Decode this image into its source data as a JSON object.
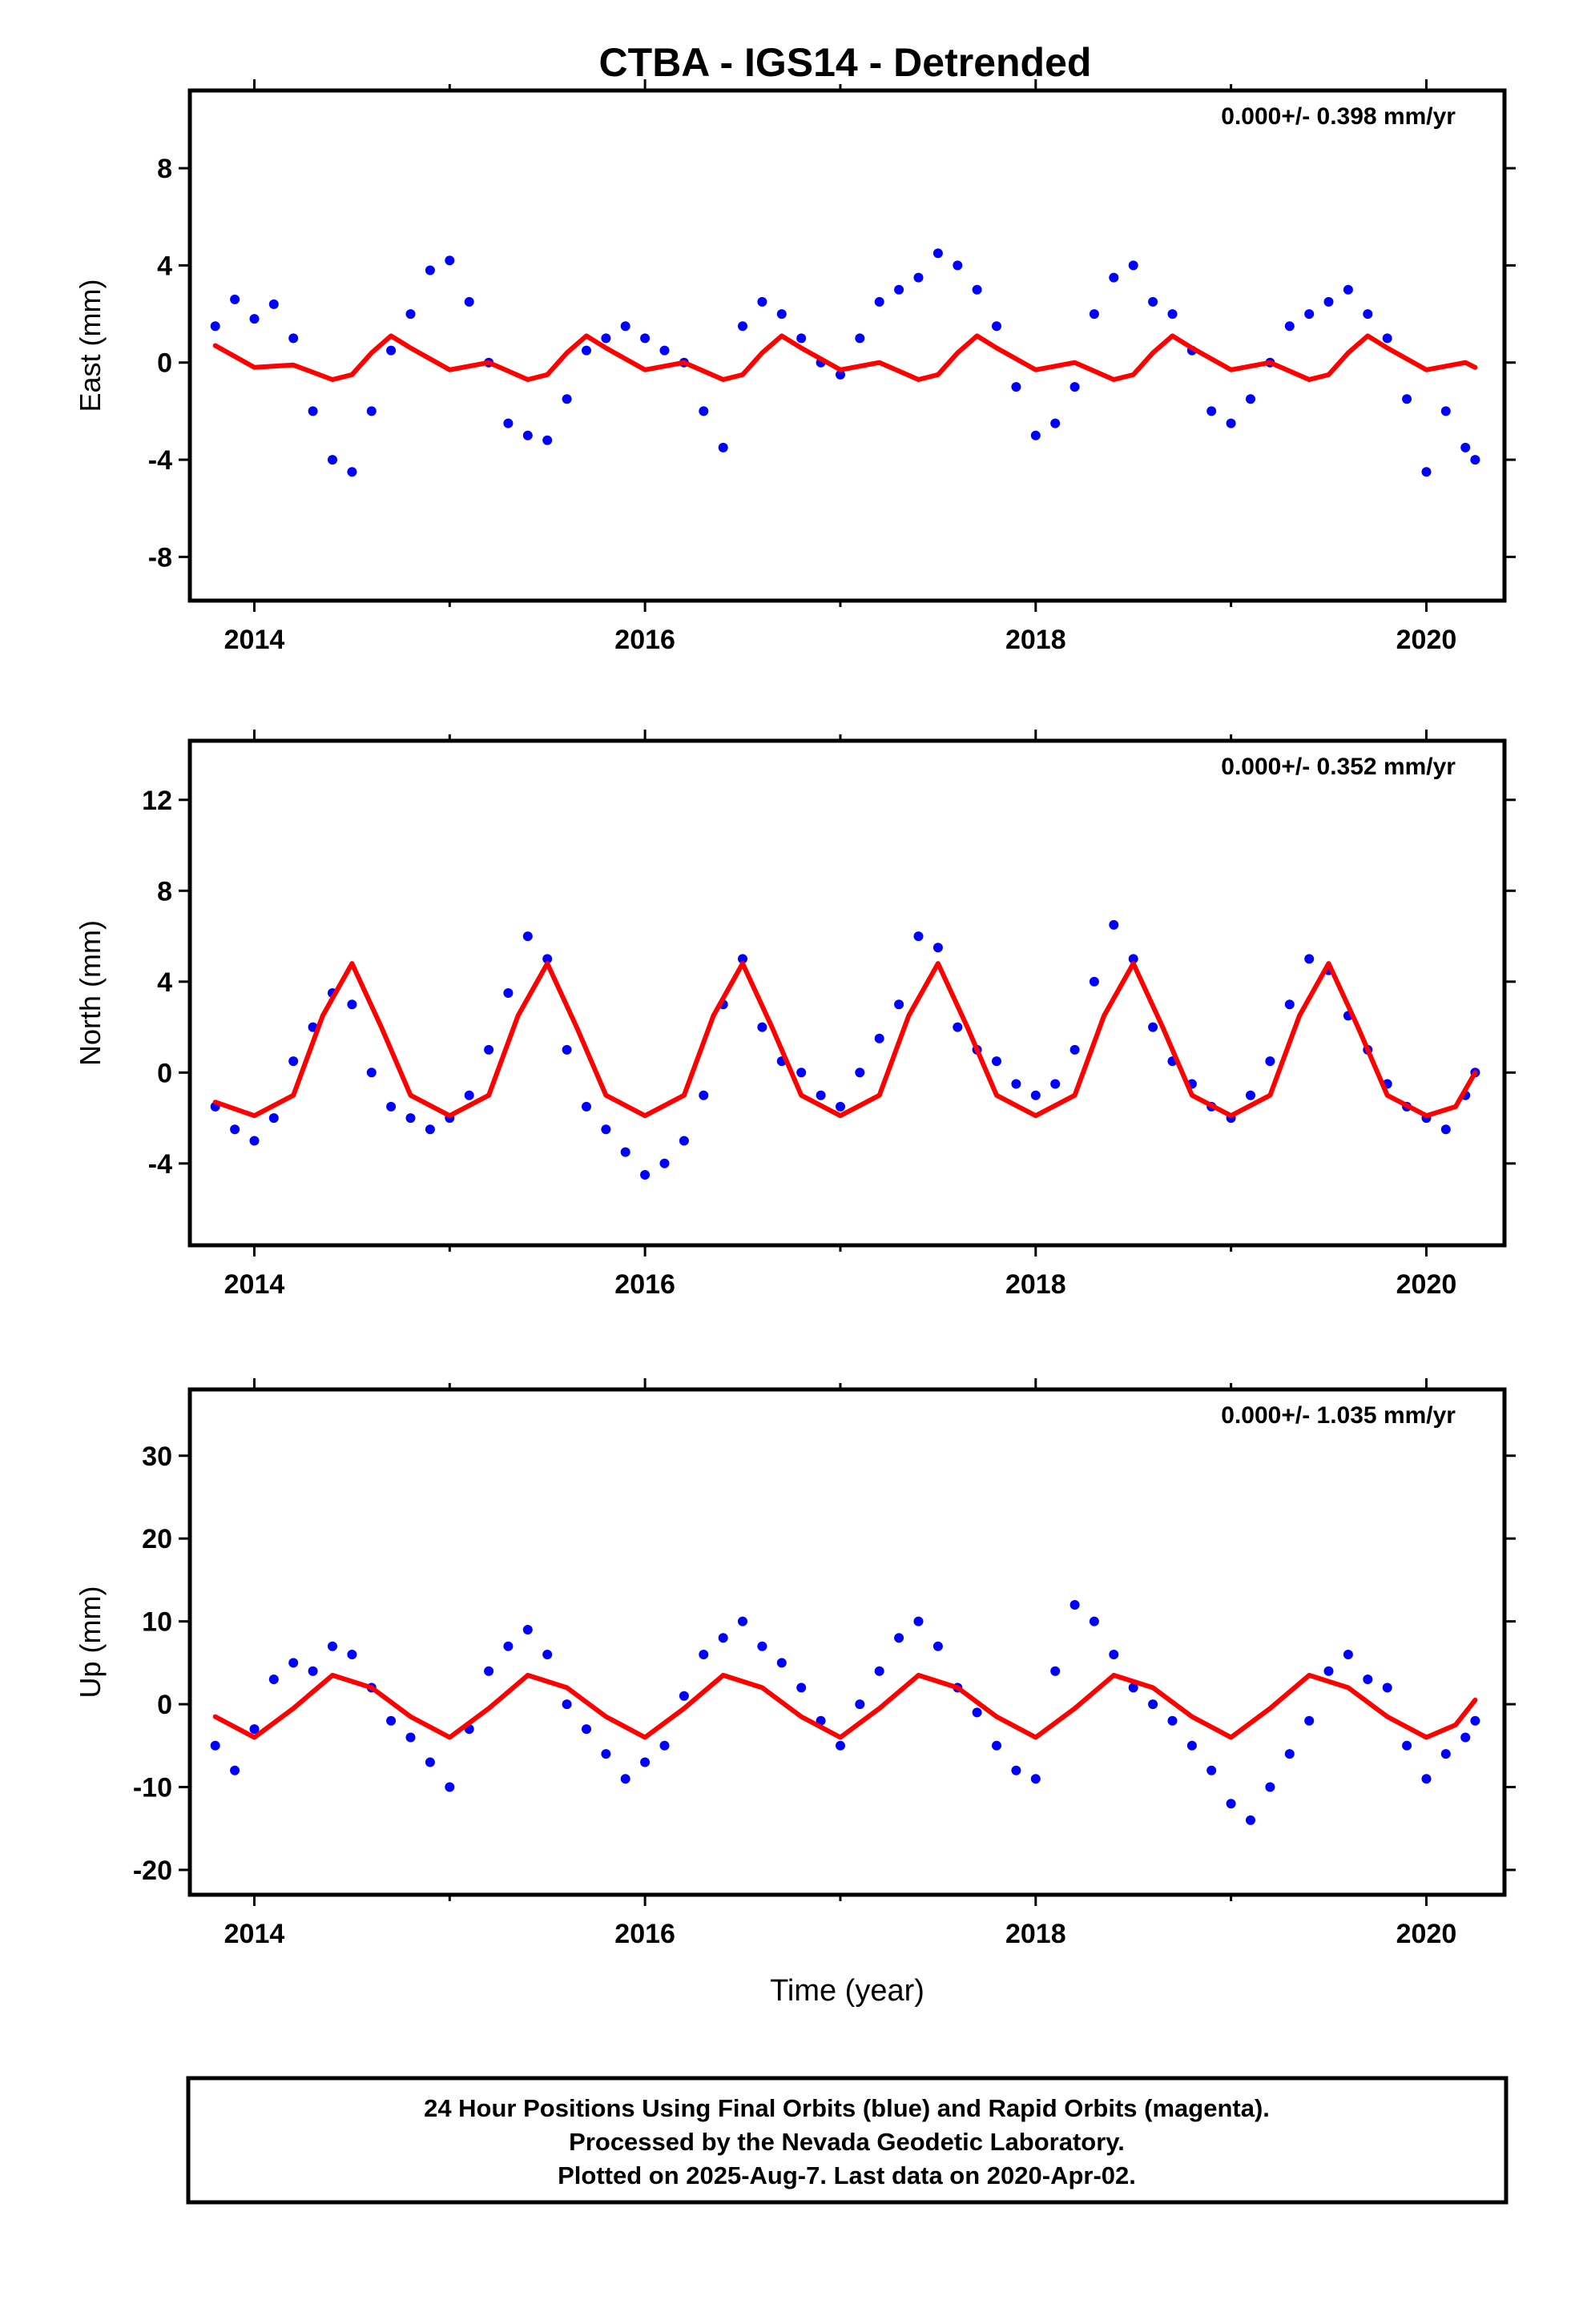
{
  "title": "CTBA - IGS14 - Detrended",
  "footer": {
    "lines": [
      "24 Hour Positions Using Final Orbits (blue) and Rapid Orbits (magenta).",
      "Processed by the Nevada Geodetic Laboratory.",
      "Plotted on 2025-Aug-7. Last data on 2020-Apr-02."
    ]
  },
  "colors": {
    "final_orbit_points": "#0000ff",
    "model_curve": "#ff0000",
    "frame": "#000000"
  },
  "chart_data": [
    {
      "type": "scatter",
      "component": "East",
      "ylabel": "East (mm)",
      "xlabel": "",
      "rate_label": "0.000+/- 0.398 mm/yr",
      "xlim": [
        2013.67,
        2020.4
      ],
      "ylim": [
        -9.8,
        11.2
      ],
      "xticks": [
        2014,
        2016,
        2018,
        2020
      ],
      "yticks": [
        -8,
        -4,
        0,
        4,
        8
      ],
      "series": [
        {
          "kind": "points",
          "x": [
            2013.8,
            2013.9,
            2014.0,
            2014.1,
            2014.2,
            2014.3,
            2014.4,
            2014.5,
            2014.6,
            2014.7,
            2014.8,
            2014.9,
            2015.0,
            2015.1,
            2015.2,
            2015.3,
            2015.4,
            2015.5,
            2015.6,
            2015.7,
            2015.8,
            2015.9,
            2016.0,
            2016.1,
            2016.2,
            2016.3,
            2016.4,
            2016.5,
            2016.6,
            2016.7,
            2016.8,
            2016.9,
            2017.0,
            2017.1,
            2017.2,
            2017.3,
            2017.4,
            2017.5,
            2017.6,
            2017.7,
            2017.8,
            2017.9,
            2018.0,
            2018.1,
            2018.2,
            2018.3,
            2018.4,
            2018.5,
            2018.6,
            2018.7,
            2018.8,
            2018.9,
            2019.0,
            2019.1,
            2019.2,
            2019.3,
            2019.4,
            2019.5,
            2019.6,
            2019.7,
            2019.8,
            2019.9,
            2020.0,
            2020.1,
            2020.2,
            2020.25
          ],
          "y": [
            1.5,
            2.6,
            1.8,
            2.4,
            1.0,
            -2.0,
            -4.0,
            -4.5,
            -2.0,
            0.5,
            2.0,
            3.8,
            4.2,
            2.5,
            0.0,
            -2.5,
            -3.0,
            -3.2,
            -1.5,
            0.5,
            1.0,
            1.5,
            1.0,
            0.5,
            0.0,
            -2.0,
            -3.5,
            1.5,
            2.5,
            2.0,
            1.0,
            0.0,
            -0.5,
            1.0,
            2.5,
            3.0,
            3.5,
            4.5,
            4.0,
            3.0,
            1.5,
            -1.0,
            -3.0,
            -2.5,
            -1.0,
            2.0,
            3.5,
            4.0,
            2.5,
            2.0,
            0.5,
            -2.0,
            -2.5,
            -1.5,
            0.0,
            1.5,
            2.0,
            2.5,
            3.0,
            2.0,
            1.0,
            -1.5,
            -4.5,
            -2.0,
            -3.5,
            -4.0
          ]
        },
        {
          "kind": "model",
          "x": [
            2013.8,
            2014.0,
            2014.2,
            2014.4,
            2014.5,
            2014.6,
            2014.7,
            2014.8,
            2015.0,
            2015.2,
            2015.4,
            2015.5,
            2015.6,
            2015.7,
            2015.8,
            2016.0,
            2016.2,
            2016.4,
            2016.5,
            2016.6,
            2016.7,
            2016.8,
            2017.0,
            2017.2,
            2017.4,
            2017.5,
            2017.6,
            2017.7,
            2017.8,
            2018.0,
            2018.2,
            2018.4,
            2018.5,
            2018.6,
            2018.7,
            2018.8,
            2019.0,
            2019.2,
            2019.4,
            2019.5,
            2019.6,
            2019.7,
            2019.8,
            2020.0,
            2020.2,
            2020.25
          ],
          "y": [
            0.7,
            -0.2,
            -0.1,
            -0.7,
            -0.5,
            0.4,
            1.1,
            0.6,
            -0.3,
            0.0,
            -0.7,
            -0.5,
            0.4,
            1.1,
            0.6,
            -0.3,
            0.0,
            -0.7,
            -0.5,
            0.4,
            1.1,
            0.6,
            -0.3,
            0.0,
            -0.7,
            -0.5,
            0.4,
            1.1,
            0.6,
            -0.3,
            0.0,
            -0.7,
            -0.5,
            0.4,
            1.1,
            0.6,
            -0.3,
            0.0,
            -0.7,
            -0.5,
            0.4,
            1.1,
            0.6,
            -0.3,
            0.0,
            -0.2
          ]
        }
      ]
    },
    {
      "type": "scatter",
      "component": "North",
      "ylabel": "North (mm)",
      "xlabel": "",
      "rate_label": "0.000+/- 0.352 mm/yr",
      "xlim": [
        2013.67,
        2020.4
      ],
      "ylim": [
        -7.6,
        14.6
      ],
      "xticks": [
        2014,
        2016,
        2018,
        2020
      ],
      "yticks": [
        -4,
        0,
        4,
        8,
        12
      ],
      "series": [
        {
          "kind": "points",
          "x": [
            2013.8,
            2013.9,
            2014.0,
            2014.1,
            2014.2,
            2014.3,
            2014.4,
            2014.5,
            2014.6,
            2014.7,
            2014.8,
            2014.9,
            2015.0,
            2015.1,
            2015.2,
            2015.3,
            2015.4,
            2015.5,
            2015.6,
            2015.7,
            2015.8,
            2015.9,
            2016.0,
            2016.1,
            2016.2,
            2016.3,
            2016.4,
            2016.5,
            2016.6,
            2016.7,
            2016.8,
            2016.9,
            2017.0,
            2017.1,
            2017.2,
            2017.3,
            2017.4,
            2017.5,
            2017.6,
            2017.7,
            2017.8,
            2017.9,
            2018.0,
            2018.1,
            2018.2,
            2018.3,
            2018.4,
            2018.5,
            2018.6,
            2018.7,
            2018.8,
            2018.9,
            2019.0,
            2019.1,
            2019.2,
            2019.3,
            2019.4,
            2019.5,
            2019.6,
            2019.7,
            2019.8,
            2019.9,
            2020.0,
            2020.1,
            2020.2,
            2020.25
          ],
          "y": [
            -1.5,
            -2.5,
            -3.0,
            -2.0,
            0.5,
            2.0,
            3.5,
            3.0,
            0.0,
            -1.5,
            -2.0,
            -2.5,
            -2.0,
            -1.0,
            1.0,
            3.5,
            6.0,
            5.0,
            1.0,
            -1.5,
            -2.5,
            -3.5,
            -4.5,
            -4.0,
            -3.0,
            -1.0,
            3.0,
            5.0,
            2.0,
            0.5,
            0.0,
            -1.0,
            -1.5,
            0.0,
            1.5,
            3.0,
            6.0,
            5.5,
            2.0,
            1.0,
            0.5,
            -0.5,
            -1.0,
            -0.5,
            1.0,
            4.0,
            6.5,
            5.0,
            2.0,
            0.5,
            -0.5,
            -1.5,
            -2.0,
            -1.0,
            0.5,
            3.0,
            5.0,
            4.5,
            2.5,
            1.0,
            -0.5,
            -1.5,
            -2.0,
            -2.5,
            -1.0,
            0.0
          ]
        },
        {
          "kind": "model",
          "x": [
            2013.8,
            2014.0,
            2014.2,
            2014.35,
            2014.5,
            2014.65,
            2014.8,
            2015.0,
            2015.2,
            2015.35,
            2015.5,
            2015.65,
            2015.8,
            2016.0,
            2016.2,
            2016.35,
            2016.5,
            2016.65,
            2016.8,
            2017.0,
            2017.2,
            2017.35,
            2017.5,
            2017.65,
            2017.8,
            2018.0,
            2018.2,
            2018.35,
            2018.5,
            2018.65,
            2018.8,
            2019.0,
            2019.2,
            2019.35,
            2019.5,
            2019.65,
            2019.8,
            2020.0,
            2020.15,
            2020.25
          ],
          "y": [
            -1.3,
            -1.9,
            -1.0,
            2.5,
            4.8,
            2.0,
            -1.0,
            -1.9,
            -1.0,
            2.5,
            4.8,
            2.0,
            -1.0,
            -1.9,
            -1.0,
            2.5,
            4.8,
            2.0,
            -1.0,
            -1.9,
            -1.0,
            2.5,
            4.8,
            2.0,
            -1.0,
            -1.9,
            -1.0,
            2.5,
            4.8,
            2.0,
            -1.0,
            -1.9,
            -1.0,
            2.5,
            4.8,
            2.0,
            -1.0,
            -1.9,
            -1.5,
            0.0
          ]
        }
      ]
    },
    {
      "type": "scatter",
      "component": "Up",
      "ylabel": "Up (mm)",
      "xlabel": "Time (year)",
      "rate_label": "0.000+/- 1.035 mm/yr",
      "xlim": [
        2013.67,
        2020.4
      ],
      "ylim": [
        -23,
        38
      ],
      "xticks": [
        2014,
        2016,
        2018,
        2020
      ],
      "yticks": [
        -20,
        -10,
        0,
        10,
        20,
        30
      ],
      "series": [
        {
          "kind": "points",
          "x": [
            2013.8,
            2013.9,
            2014.0,
            2014.1,
            2014.2,
            2014.3,
            2014.4,
            2014.5,
            2014.6,
            2014.7,
            2014.8,
            2014.9,
            2015.0,
            2015.1,
            2015.2,
            2015.3,
            2015.4,
            2015.5,
            2015.6,
            2015.7,
            2015.8,
            2015.9,
            2016.0,
            2016.1,
            2016.2,
            2016.3,
            2016.4,
            2016.5,
            2016.6,
            2016.7,
            2016.8,
            2016.9,
            2017.0,
            2017.1,
            2017.2,
            2017.3,
            2017.4,
            2017.5,
            2017.6,
            2017.7,
            2017.8,
            2017.9,
            2018.0,
            2018.1,
            2018.2,
            2018.3,
            2018.4,
            2018.5,
            2018.6,
            2018.7,
            2018.8,
            2018.9,
            2019.0,
            2019.1,
            2019.2,
            2019.3,
            2019.4,
            2019.5,
            2019.6,
            2019.7,
            2019.8,
            2019.9,
            2020.0,
            2020.1,
            2020.2,
            2020.25
          ],
          "y": [
            -5,
            -8,
            -3,
            3,
            5,
            4,
            7,
            6,
            2,
            -2,
            -4,
            -7,
            -10,
            -3,
            4,
            7,
            9,
            6,
            0,
            -3,
            -6,
            -9,
            -7,
            -5,
            1,
            6,
            8,
            10,
            7,
            5,
            2,
            -2,
            -5,
            0,
            4,
            8,
            10,
            7,
            2,
            -1,
            -5,
            -8,
            -9,
            4,
            12,
            10,
            6,
            2,
            0,
            -2,
            -5,
            -8,
            -12,
            -14,
            -10,
            -6,
            -2,
            4,
            6,
            3,
            2,
            -5,
            -9,
            -6,
            -4,
            -2
          ]
        },
        {
          "kind": "model",
          "x": [
            2013.8,
            2014.0,
            2014.2,
            2014.4,
            2014.6,
            2014.8,
            2015.0,
            2015.2,
            2015.4,
            2015.6,
            2015.8,
            2016.0,
            2016.2,
            2016.4,
            2016.6,
            2016.8,
            2017.0,
            2017.2,
            2017.4,
            2017.6,
            2017.8,
            2018.0,
            2018.2,
            2018.4,
            2018.6,
            2018.8,
            2019.0,
            2019.2,
            2019.4,
            2019.6,
            2019.8,
            2020.0,
            2020.15,
            2020.25
          ],
          "y": [
            -1.5,
            -4.0,
            -0.5,
            3.5,
            2.0,
            -1.5,
            -4.0,
            -0.5,
            3.5,
            2.0,
            -1.5,
            -4.0,
            -0.5,
            3.5,
            2.0,
            -1.5,
            -4.0,
            -0.5,
            3.5,
            2.0,
            -1.5,
            -4.0,
            -0.5,
            3.5,
            2.0,
            -1.5,
            -4.0,
            -0.5,
            3.5,
            2.0,
            -1.5,
            -4.0,
            -2.5,
            0.5
          ]
        }
      ]
    }
  ]
}
